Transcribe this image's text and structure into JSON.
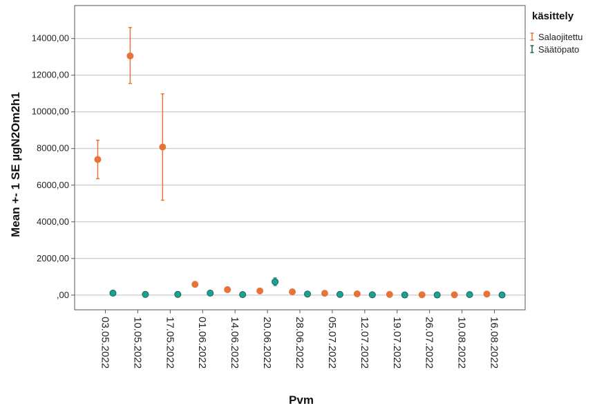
{
  "chart_data": {
    "type": "scatter",
    "xlabel": "Pvm",
    "ylabel": "Mean +- 1 SE µgN2Om2h1",
    "yticks": [
      "14000,00",
      "12000,00",
      "10000,00",
      "8000,00",
      "6000,00",
      "4000,00",
      "2000,00",
      ",00"
    ],
    "ytick_values": [
      14000,
      12000,
      10000,
      8000,
      6000,
      4000,
      2000,
      0
    ],
    "ylim": [
      -800,
      15800
    ],
    "grid": "horizontal",
    "categories": [
      "03.05.2022",
      "10.05.2022",
      "17.05.2022",
      "01.06.2022",
      "14.06.2022",
      "20.06.2022",
      "28.06.2022",
      "05.07.2022",
      "12.07.2022",
      "19.07.2022",
      "26.07.2022",
      "10.08.2022",
      "16.08.2022"
    ],
    "legend": {
      "title": "käsittely",
      "position": "top-right"
    },
    "series": [
      {
        "name": "Salaojitettu",
        "color": "#e8733a",
        "values": [
          7400,
          13050,
          8080,
          590,
          300,
          230,
          180,
          100,
          70,
          40,
          20,
          20,
          60
        ],
        "se_low": [
          6350,
          11550,
          5180,
          590,
          300,
          230,
          180,
          100,
          70,
          40,
          20,
          20,
          60
        ],
        "se_high": [
          8450,
          14600,
          10980,
          590,
          300,
          230,
          180,
          100,
          70,
          40,
          20,
          20,
          60
        ]
      },
      {
        "name": "Säätöpato",
        "color": "#1aa391",
        "values": [
          110,
          40,
          40,
          110,
          30,
          730,
          60,
          40,
          20,
          10,
          10,
          30,
          10
        ],
        "se_low": [
          110,
          40,
          40,
          110,
          30,
          520,
          60,
          40,
          20,
          10,
          10,
          30,
          10
        ],
        "se_high": [
          110,
          40,
          40,
          110,
          30,
          940,
          60,
          40,
          20,
          10,
          10,
          30,
          10
        ]
      }
    ]
  }
}
